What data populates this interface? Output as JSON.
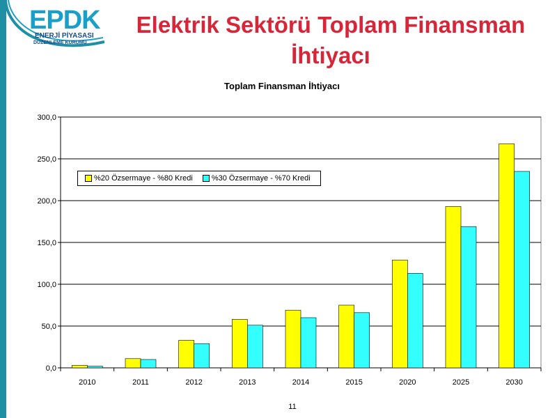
{
  "logo": {
    "brand": "EPDK",
    "line1": "ENERJİ PİYASASI",
    "line2": "DÜZENLEME KURUMU"
  },
  "slide_title": "Elektrik Sektörü Toplam Finansman İhtiyacı",
  "page_number": "11",
  "colors": {
    "title": "#d6273a",
    "series1": "#ffff00",
    "series2": "#33ffff",
    "band": "#1f8fa6"
  },
  "chart_data": {
    "type": "bar",
    "title": "Toplam Finansman İhtiyacı",
    "xlabel": "",
    "ylabel": "",
    "categories": [
      "2010",
      "2011",
      "2012",
      "2013",
      "2014",
      "2015",
      "2020",
      "2025",
      "2030"
    ],
    "series": [
      {
        "name": "%20 Özsermaye - %80 Kredi",
        "values": [
          3,
          11,
          33,
          58,
          69,
          75,
          129,
          193,
          268
        ]
      },
      {
        "name": "%30 Özsermaye - %70 Kredi",
        "values": [
          2,
          10,
          29,
          51,
          60,
          66,
          113,
          169,
          235
        ]
      }
    ],
    "ylim": [
      0,
      300
    ],
    "yticks": [
      "0,0",
      "50,0",
      "100,0",
      "150,0",
      "200,0",
      "250,0",
      "300,0"
    ],
    "grid": true,
    "legend_position": "top-left"
  }
}
